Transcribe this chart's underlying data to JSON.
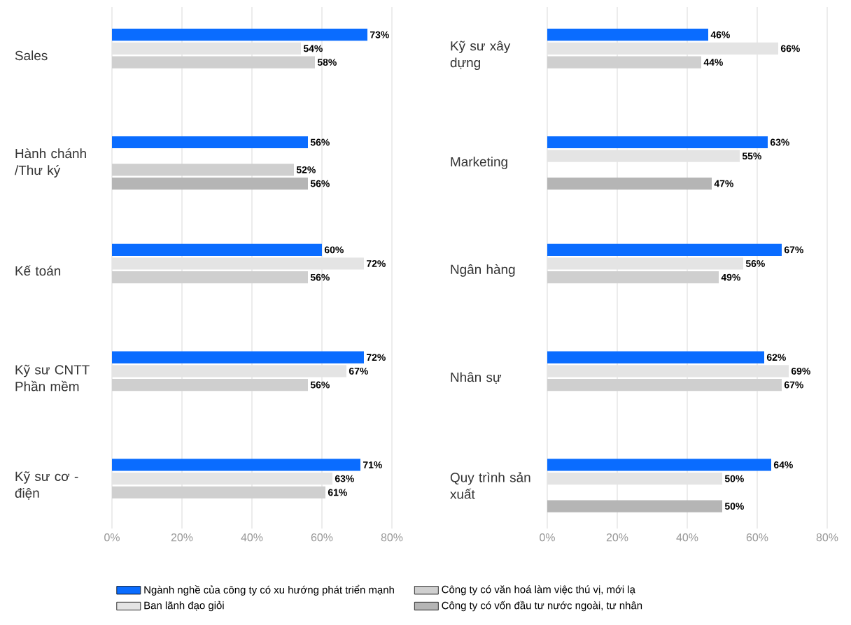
{
  "chart_data": [
    {
      "type": "bar",
      "orientation": "horizontal",
      "categories": [
        "Sales",
        "Hành chánh /Thư ký",
        "Kế toán",
        "Kỹ sư CNTT Phần mềm",
        "Kỹ sư cơ - điện"
      ],
      "series": [
        {
          "name": "Ngành nghề của công ty có xu hướng phát triển mạnh",
          "color": "#0a6cff",
          "values": [
            73,
            56,
            60,
            72,
            71
          ],
          "value_labels": [
            "73%",
            "56%",
            "60%",
            "72%",
            "71%"
          ]
        },
        {
          "name": "Ban lãnh đạo giỏi",
          "color": "#e4e4e4",
          "values": [
            54,
            null,
            72,
            67,
            63
          ],
          "value_labels": [
            "54%",
            null,
            "72%",
            "67%",
            "63%"
          ]
        },
        {
          "name": "Công ty có văn hoá làm việc thú vị, mới lạ",
          "color": "#cfcfcf",
          "values": [
            58,
            52,
            56,
            56,
            61
          ],
          "value_labels": [
            "58%",
            "52%",
            "56%",
            "56%",
            "61%"
          ]
        },
        {
          "name": "Công ty có vốn đầu tư nước ngoài, tư nhân",
          "color": "#b5b5b5",
          "values": [
            null,
            56,
            null,
            null,
            null
          ],
          "value_labels": [
            null,
            "56%",
            null,
            null,
            null
          ]
        }
      ],
      "xlim": [
        0,
        80
      ],
      "xticks": [
        {
          "value": 0,
          "label": "0%"
        },
        {
          "value": 20,
          "label": "20%"
        },
        {
          "value": 40,
          "label": "40%"
        },
        {
          "value": 60,
          "label": "60%"
        },
        {
          "value": 80,
          "label": "80%"
        }
      ],
      "grid": "x",
      "legend": "bottom"
    },
    {
      "type": "bar",
      "orientation": "horizontal",
      "categories": [
        "Kỹ sư xây dựng",
        "Marketing",
        "Ngân hàng",
        "Nhân sự",
        "Quy trình sản xuất"
      ],
      "series": [
        {
          "color": "#0a6cff",
          "values": [
            46,
            63,
            67,
            62,
            64
          ],
          "value_labels": [
            "46%",
            "63%",
            "67%",
            "62%",
            "64%"
          ]
        },
        {
          "color": "#e4e4e4",
          "values": [
            66,
            55,
            56,
            69,
            50
          ],
          "value_labels": [
            "66%",
            "55%",
            "56%",
            "69%",
            "50%"
          ]
        },
        {
          "color": "#cfcfcf",
          "values": [
            44,
            null,
            49,
            67,
            null
          ],
          "value_labels": [
            "44%",
            null,
            "49%",
            "67%",
            null
          ]
        },
        {
          "color": "#b5b5b5",
          "values": [
            null,
            47,
            null,
            null,
            50
          ],
          "value_labels": [
            null,
            "47%",
            null,
            null,
            "50%"
          ]
        }
      ],
      "xlim": [
        0,
        80
      ],
      "xticks": [
        {
          "value": 0,
          "label": "0%"
        },
        {
          "value": 20,
          "label": "20%"
        },
        {
          "value": 40,
          "label": "40%"
        },
        {
          "value": 60,
          "label": "60%"
        },
        {
          "value": 80,
          "label": "80%"
        }
      ],
      "grid": "x"
    }
  ]
}
